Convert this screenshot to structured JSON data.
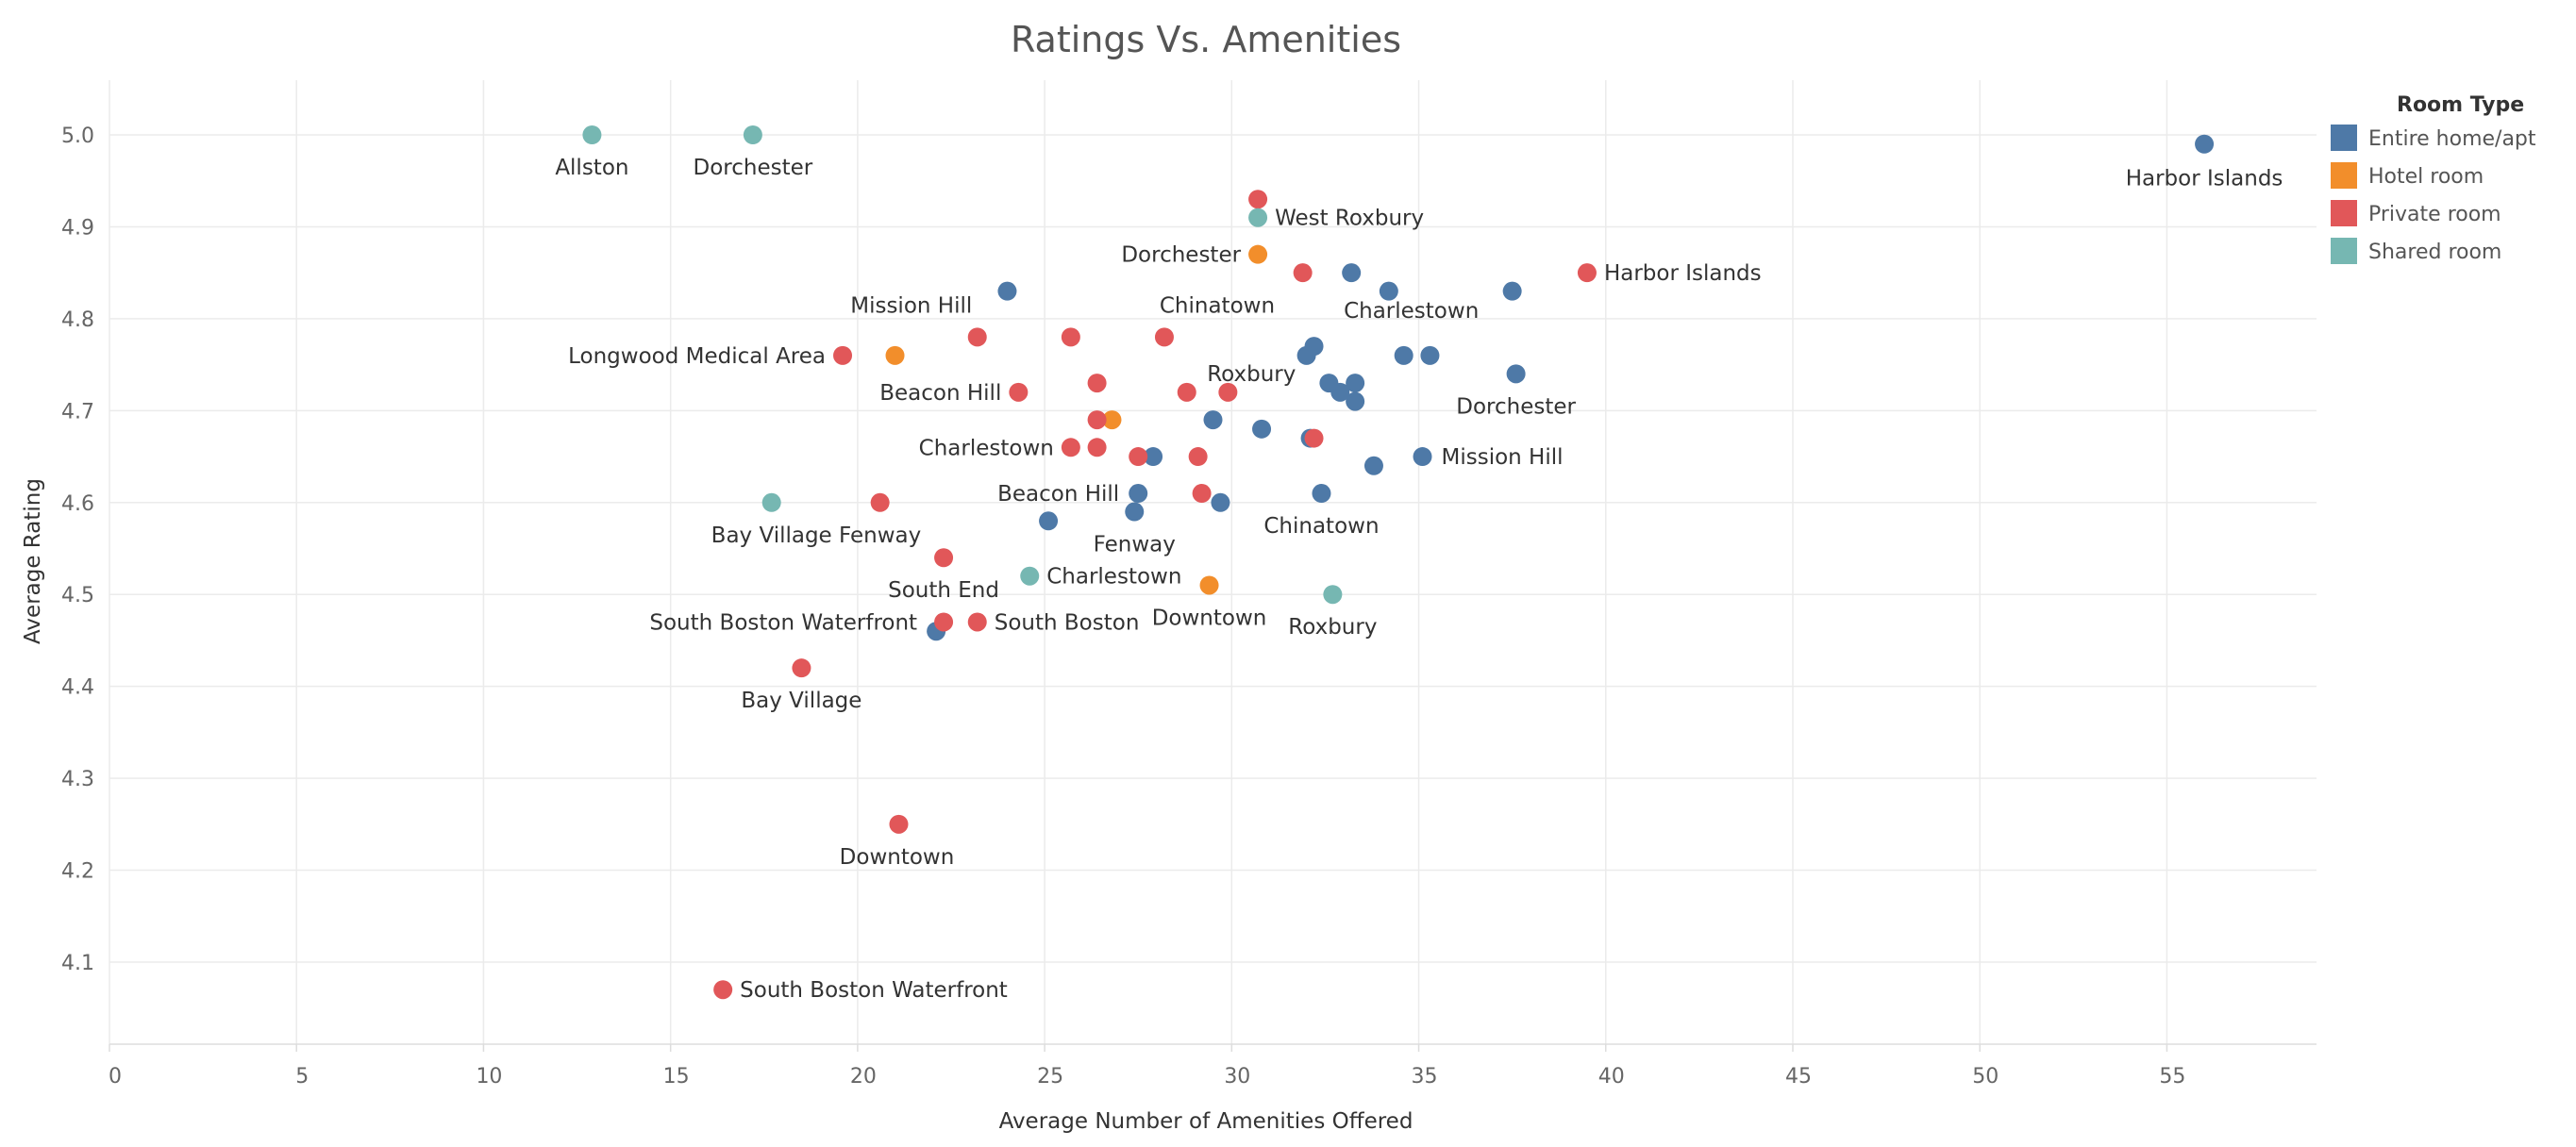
{
  "chart_data": {
    "type": "scatter",
    "title": "Ratings Vs. Amenities",
    "xlabel": "Average Number of Amenities Offered",
    "ylabel": "Average Rating",
    "xlim": [
      0,
      59
    ],
    "ylim": [
      4.01,
      5.1
    ],
    "x_ticks": [
      "0",
      "5",
      "10",
      "15",
      "20",
      "25",
      "30",
      "35",
      "40",
      "45",
      "50",
      "55"
    ],
    "y_ticks": [
      "4.1",
      "4.2",
      "4.3",
      "4.4",
      "4.5",
      "4.6",
      "4.7",
      "4.8",
      "4.9",
      "5.0"
    ],
    "grid": true,
    "legend": {
      "title": "Room Type",
      "position": "top-right",
      "entries": [
        {
          "name": "Entire home/apt",
          "color": "#4e79a7"
        },
        {
          "name": "Hotel room",
          "color": "#f28e2b"
        },
        {
          "name": "Private room",
          "color": "#e15759"
        },
        {
          "name": "Shared room",
          "color": "#76b7b2"
        }
      ]
    },
    "series": [
      {
        "name": "Entire home/apt",
        "color": "#4e79a7",
        "points": [
          {
            "x": 56.0,
            "y": 4.99,
            "label": "Harbor Islands"
          },
          {
            "x": 24.0,
            "y": 4.83
          },
          {
            "x": 33.2,
            "y": 4.85
          },
          {
            "x": 34.2,
            "y": 4.83
          },
          {
            "x": 37.5,
            "y": 4.83
          },
          {
            "x": 32.2,
            "y": 4.77
          },
          {
            "x": 32.0,
            "y": 4.76
          },
          {
            "x": 34.6,
            "y": 4.76,
            "label": "Charlestown"
          },
          {
            "x": 35.3,
            "y": 4.76
          },
          {
            "x": 37.6,
            "y": 4.74,
            "label": "Dorchester"
          },
          {
            "x": 33.3,
            "y": 4.73
          },
          {
            "x": 32.6,
            "y": 4.73
          },
          {
            "x": 32.9,
            "y": 4.72,
            "label": "Roxbury"
          },
          {
            "x": 33.3,
            "y": 4.71
          },
          {
            "x": 29.5,
            "y": 4.69
          },
          {
            "x": 30.8,
            "y": 4.68
          },
          {
            "x": 32.1,
            "y": 4.67
          },
          {
            "x": 27.9,
            "y": 4.65
          },
          {
            "x": 35.1,
            "y": 4.65,
            "label": "Mission Hill"
          },
          {
            "x": 33.8,
            "y": 4.64
          },
          {
            "x": 27.5,
            "y": 4.61,
            "label": "Beacon Hill"
          },
          {
            "x": 32.4,
            "y": 4.61,
            "label": "Chinatown"
          },
          {
            "x": 29.7,
            "y": 4.6
          },
          {
            "x": 27.4,
            "y": 4.59,
            "label": "Fenway"
          },
          {
            "x": 25.1,
            "y": 4.58
          },
          {
            "x": 22.1,
            "y": 4.46
          }
        ]
      },
      {
        "name": "Hotel room",
        "color": "#f28e2b",
        "points": [
          {
            "x": 30.7,
            "y": 4.87,
            "label": "Dorchester"
          },
          {
            "x": 21.0,
            "y": 4.76
          },
          {
            "x": 26.8,
            "y": 4.69
          },
          {
            "x": 29.4,
            "y": 4.51,
            "label": "Downtown"
          }
        ]
      },
      {
        "name": "Private room",
        "color": "#e15759",
        "points": [
          {
            "x": 30.7,
            "y": 4.93
          },
          {
            "x": 31.9,
            "y": 4.85
          },
          {
            "x": 39.5,
            "y": 4.85,
            "label": "Harbor Islands"
          },
          {
            "x": 19.6,
            "y": 4.76,
            "label": "Longwood Medical Area"
          },
          {
            "x": 23.2,
            "y": 4.78,
            "label": "Mission Hill"
          },
          {
            "x": 25.7,
            "y": 4.78
          },
          {
            "x": 28.2,
            "y": 4.78,
            "label": "Chinatown"
          },
          {
            "x": 26.4,
            "y": 4.73
          },
          {
            "x": 24.3,
            "y": 4.72,
            "label": "Beacon Hill"
          },
          {
            "x": 28.8,
            "y": 4.72
          },
          {
            "x": 29.9,
            "y": 4.72
          },
          {
            "x": 26.4,
            "y": 4.69
          },
          {
            "x": 32.2,
            "y": 4.67
          },
          {
            "x": 25.7,
            "y": 4.66,
            "label": "Charlestown"
          },
          {
            "x": 26.4,
            "y": 4.66
          },
          {
            "x": 27.5,
            "y": 4.65
          },
          {
            "x": 29.1,
            "y": 4.65
          },
          {
            "x": 29.2,
            "y": 4.61
          },
          {
            "x": 20.6,
            "y": 4.6,
            "label": "Fenway"
          },
          {
            "x": 22.3,
            "y": 4.54,
            "label": "South End"
          },
          {
            "x": 22.3,
            "y": 4.47,
            "label": "South Boston Waterfront"
          },
          {
            "x": 23.2,
            "y": 4.47,
            "label": "South Boston"
          },
          {
            "x": 18.5,
            "y": 4.42,
            "label": "Bay Village"
          },
          {
            "x": 21.1,
            "y": 4.25,
            "label": "Downtown"
          },
          {
            "x": 16.4,
            "y": 4.07,
            "label": "South Boston Waterfront"
          }
        ]
      },
      {
        "name": "Shared room",
        "color": "#76b7b2",
        "points": [
          {
            "x": 12.9,
            "y": 5.0,
            "label": "Allston"
          },
          {
            "x": 17.2,
            "y": 5.0,
            "label": "Dorchester"
          },
          {
            "x": 30.7,
            "y": 4.91,
            "label": "West Roxbury"
          },
          {
            "x": 17.7,
            "y": 4.6,
            "label": "Bay Village"
          },
          {
            "x": 24.6,
            "y": 4.52,
            "label": "Charlestown"
          },
          {
            "x": 32.7,
            "y": 4.5,
            "label": "Roxbury"
          }
        ]
      }
    ]
  }
}
